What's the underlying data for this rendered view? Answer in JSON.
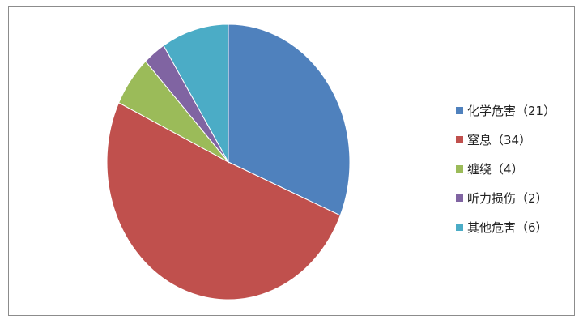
{
  "chart_data": {
    "type": "pie",
    "start_angle": "top, clockwise",
    "legend_position": "right",
    "slices": [
      {
        "label": "化学危害（21）",
        "value": 21,
        "color": "#4f81bd"
      },
      {
        "label": "窒息（34）",
        "value": 34,
        "color": "#c0504d"
      },
      {
        "label": "缠绕（4）",
        "value": 4,
        "color": "#9bbb59"
      },
      {
        "label": "听力损伤（2）",
        "value": 2,
        "color": "#8064a2"
      },
      {
        "label": "其他危害（6）",
        "value": 6,
        "color": "#4bacc6"
      }
    ]
  }
}
